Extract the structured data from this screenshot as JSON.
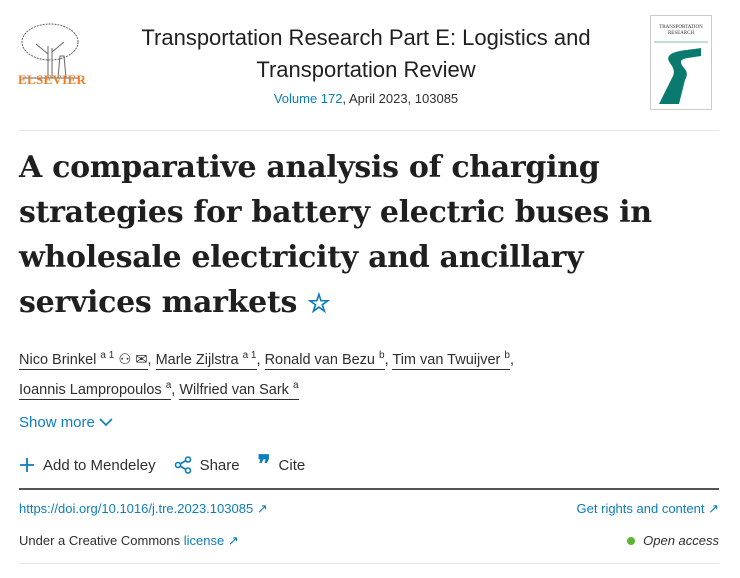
{
  "publisher": {
    "logo_text": "ELSEVIER"
  },
  "journal": {
    "title": "Transportation Research Part E: Logistics and Transportation Review",
    "volume_link": "Volume 172",
    "issue_info": ", April 2023, 103085",
    "cover_text": "TRANSPORTATION RESEARCH"
  },
  "article": {
    "title": "A comparative analysis of charging strategies for battery electric buses in wholesale electricity and ancillary services markets"
  },
  "authors": [
    {
      "name": "Nico Brinkel",
      "sup": "a 1"
    },
    {
      "name": "Marle Zijlstra",
      "sup": "a 1"
    },
    {
      "name": "Ronald van Bezu",
      "sup": "b"
    },
    {
      "name": "Tim van Twuijver",
      "sup": "b"
    },
    {
      "name": "Ioannis Lampropoulos",
      "sup": "a"
    },
    {
      "name": "Wilfried van Sark",
      "sup": "a"
    }
  ],
  "show_more": "Show more",
  "toolbar": {
    "mendeley": "Add to Mendeley",
    "share": "Share",
    "cite": "Cite"
  },
  "links": {
    "doi": "https://doi.org/10.1016/j.tre.2023.103085",
    "rights": "Get rights and content",
    "license_prefix": "Under a Creative Commons ",
    "license_link": "license",
    "open_access": "Open access"
  },
  "colors": {
    "link": "#0c7dbb",
    "brand": "#f47b20",
    "open_access": "#5cb531"
  }
}
